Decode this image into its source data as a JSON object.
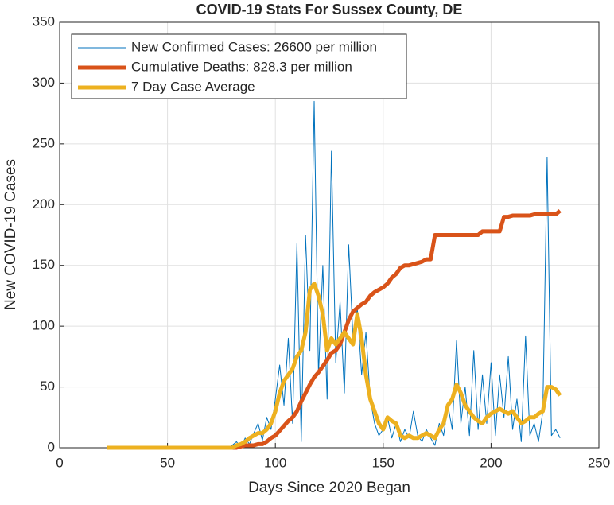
{
  "chart_data": {
    "type": "line",
    "title": "COVID-19 Stats For Sussex County, DE",
    "x_label": "Days Since 2020 Began",
    "y_label": "New COVID-19 Cases",
    "xlim": [
      0,
      250
    ],
    "xticks": [
      0,
      50,
      100,
      150,
      200,
      250
    ],
    "ylim": [
      0,
      350
    ],
    "yticks": [
      0,
      50,
      100,
      150,
      200,
      250,
      300,
      350
    ],
    "grid": true,
    "legend": "top-left",
    "x": [
      22,
      24,
      26,
      28,
      30,
      32,
      34,
      36,
      38,
      40,
      42,
      44,
      46,
      48,
      50,
      52,
      54,
      56,
      58,
      60,
      62,
      64,
      66,
      68,
      70,
      72,
      74,
      76,
      78,
      80,
      82,
      84,
      86,
      88,
      90,
      92,
      94,
      96,
      98,
      100,
      102,
      104,
      106,
      108,
      110,
      112,
      114,
      116,
      118,
      120,
      122,
      124,
      126,
      128,
      130,
      132,
      134,
      136,
      138,
      140,
      142,
      144,
      146,
      148,
      150,
      152,
      154,
      156,
      158,
      160,
      162,
      164,
      166,
      168,
      170,
      172,
      174,
      176,
      178,
      180,
      182,
      184,
      186,
      188,
      190,
      192,
      194,
      196,
      198,
      200,
      202,
      204,
      206,
      208,
      210,
      212,
      214,
      216,
      218,
      220,
      222,
      224,
      226,
      228,
      230,
      232
    ],
    "series": [
      {
        "name": "New Confirmed Cases: 26600 per million",
        "color": "#0072bd",
        "width": 1,
        "values": [
          0,
          0,
          0,
          0,
          0,
          0,
          0,
          0,
          0,
          0,
          0,
          0,
          0,
          0,
          0,
          0,
          0,
          0,
          0,
          0,
          0,
          0,
          0,
          0,
          0,
          0,
          0,
          0,
          0,
          2,
          5,
          0,
          8,
          3,
          12,
          20,
          6,
          25,
          15,
          40,
          68,
          35,
          90,
          20,
          168,
          5,
          175,
          80,
          285,
          60,
          150,
          40,
          244,
          70,
          120,
          45,
          167,
          90,
          115,
          60,
          95,
          40,
          20,
          10,
          15,
          25,
          8,
          20,
          5,
          15,
          8,
          30,
          10,
          5,
          15,
          8,
          2,
          20,
          10,
          35,
          15,
          88,
          20,
          50,
          10,
          80,
          15,
          60,
          20,
          70,
          10,
          60,
          25,
          75,
          15,
          40,
          5,
          92,
          10,
          20,
          5,
          30,
          239,
          10,
          15,
          8
        ]
      },
      {
        "name": "Cumulative Deaths: 828.3 per million",
        "color": "#d95319",
        "width": 5,
        "values": [
          0,
          0,
          0,
          0,
          0,
          0,
          0,
          0,
          0,
          0,
          0,
          0,
          0,
          0,
          0,
          0,
          0,
          0,
          0,
          0,
          0,
          0,
          0,
          0,
          0,
          0,
          0,
          0,
          0,
          0,
          0,
          1,
          2,
          2,
          2,
          3,
          3,
          5,
          8,
          10,
          14,
          18,
          22,
          25,
          30,
          38,
          45,
          52,
          58,
          62,
          67,
          72,
          78,
          80,
          85,
          95,
          105,
          112,
          115,
          118,
          120,
          125,
          128,
          130,
          132,
          135,
          140,
          143,
          148,
          150,
          150,
          151,
          152,
          153,
          155,
          155,
          175,
          175,
          175,
          175,
          175,
          175,
          175,
          175,
          175,
          175,
          175,
          178,
          178,
          178,
          178,
          178,
          190,
          190,
          191,
          191,
          191,
          191,
          191,
          192,
          192,
          192,
          192,
          192,
          192,
          195
        ]
      },
      {
        "name": "7 Day Case Average",
        "color": "#edb120",
        "width": 5,
        "values": [
          0,
          0,
          0,
          0,
          0,
          0,
          0,
          0,
          0,
          0,
          0,
          0,
          0,
          0,
          0,
          0,
          0,
          0,
          0,
          0,
          0,
          0,
          0,
          0,
          0,
          0,
          0,
          0,
          0,
          0,
          2,
          3,
          5,
          8,
          10,
          12,
          12,
          15,
          20,
          30,
          45,
          55,
          60,
          65,
          75,
          80,
          95,
          130,
          135,
          125,
          110,
          80,
          90,
          85,
          90,
          95,
          90,
          85,
          110,
          90,
          60,
          40,
          30,
          20,
          15,
          25,
          22,
          20,
          10,
          8,
          10,
          8,
          8,
          10,
          12,
          10,
          8,
          15,
          20,
          35,
          40,
          52,
          45,
          35,
          30,
          25,
          22,
          20,
          25,
          28,
          30,
          32,
          30,
          28,
          30,
          25,
          20,
          22,
          25,
          25,
          28,
          30,
          50,
          50,
          48,
          43
        ]
      }
    ]
  }
}
